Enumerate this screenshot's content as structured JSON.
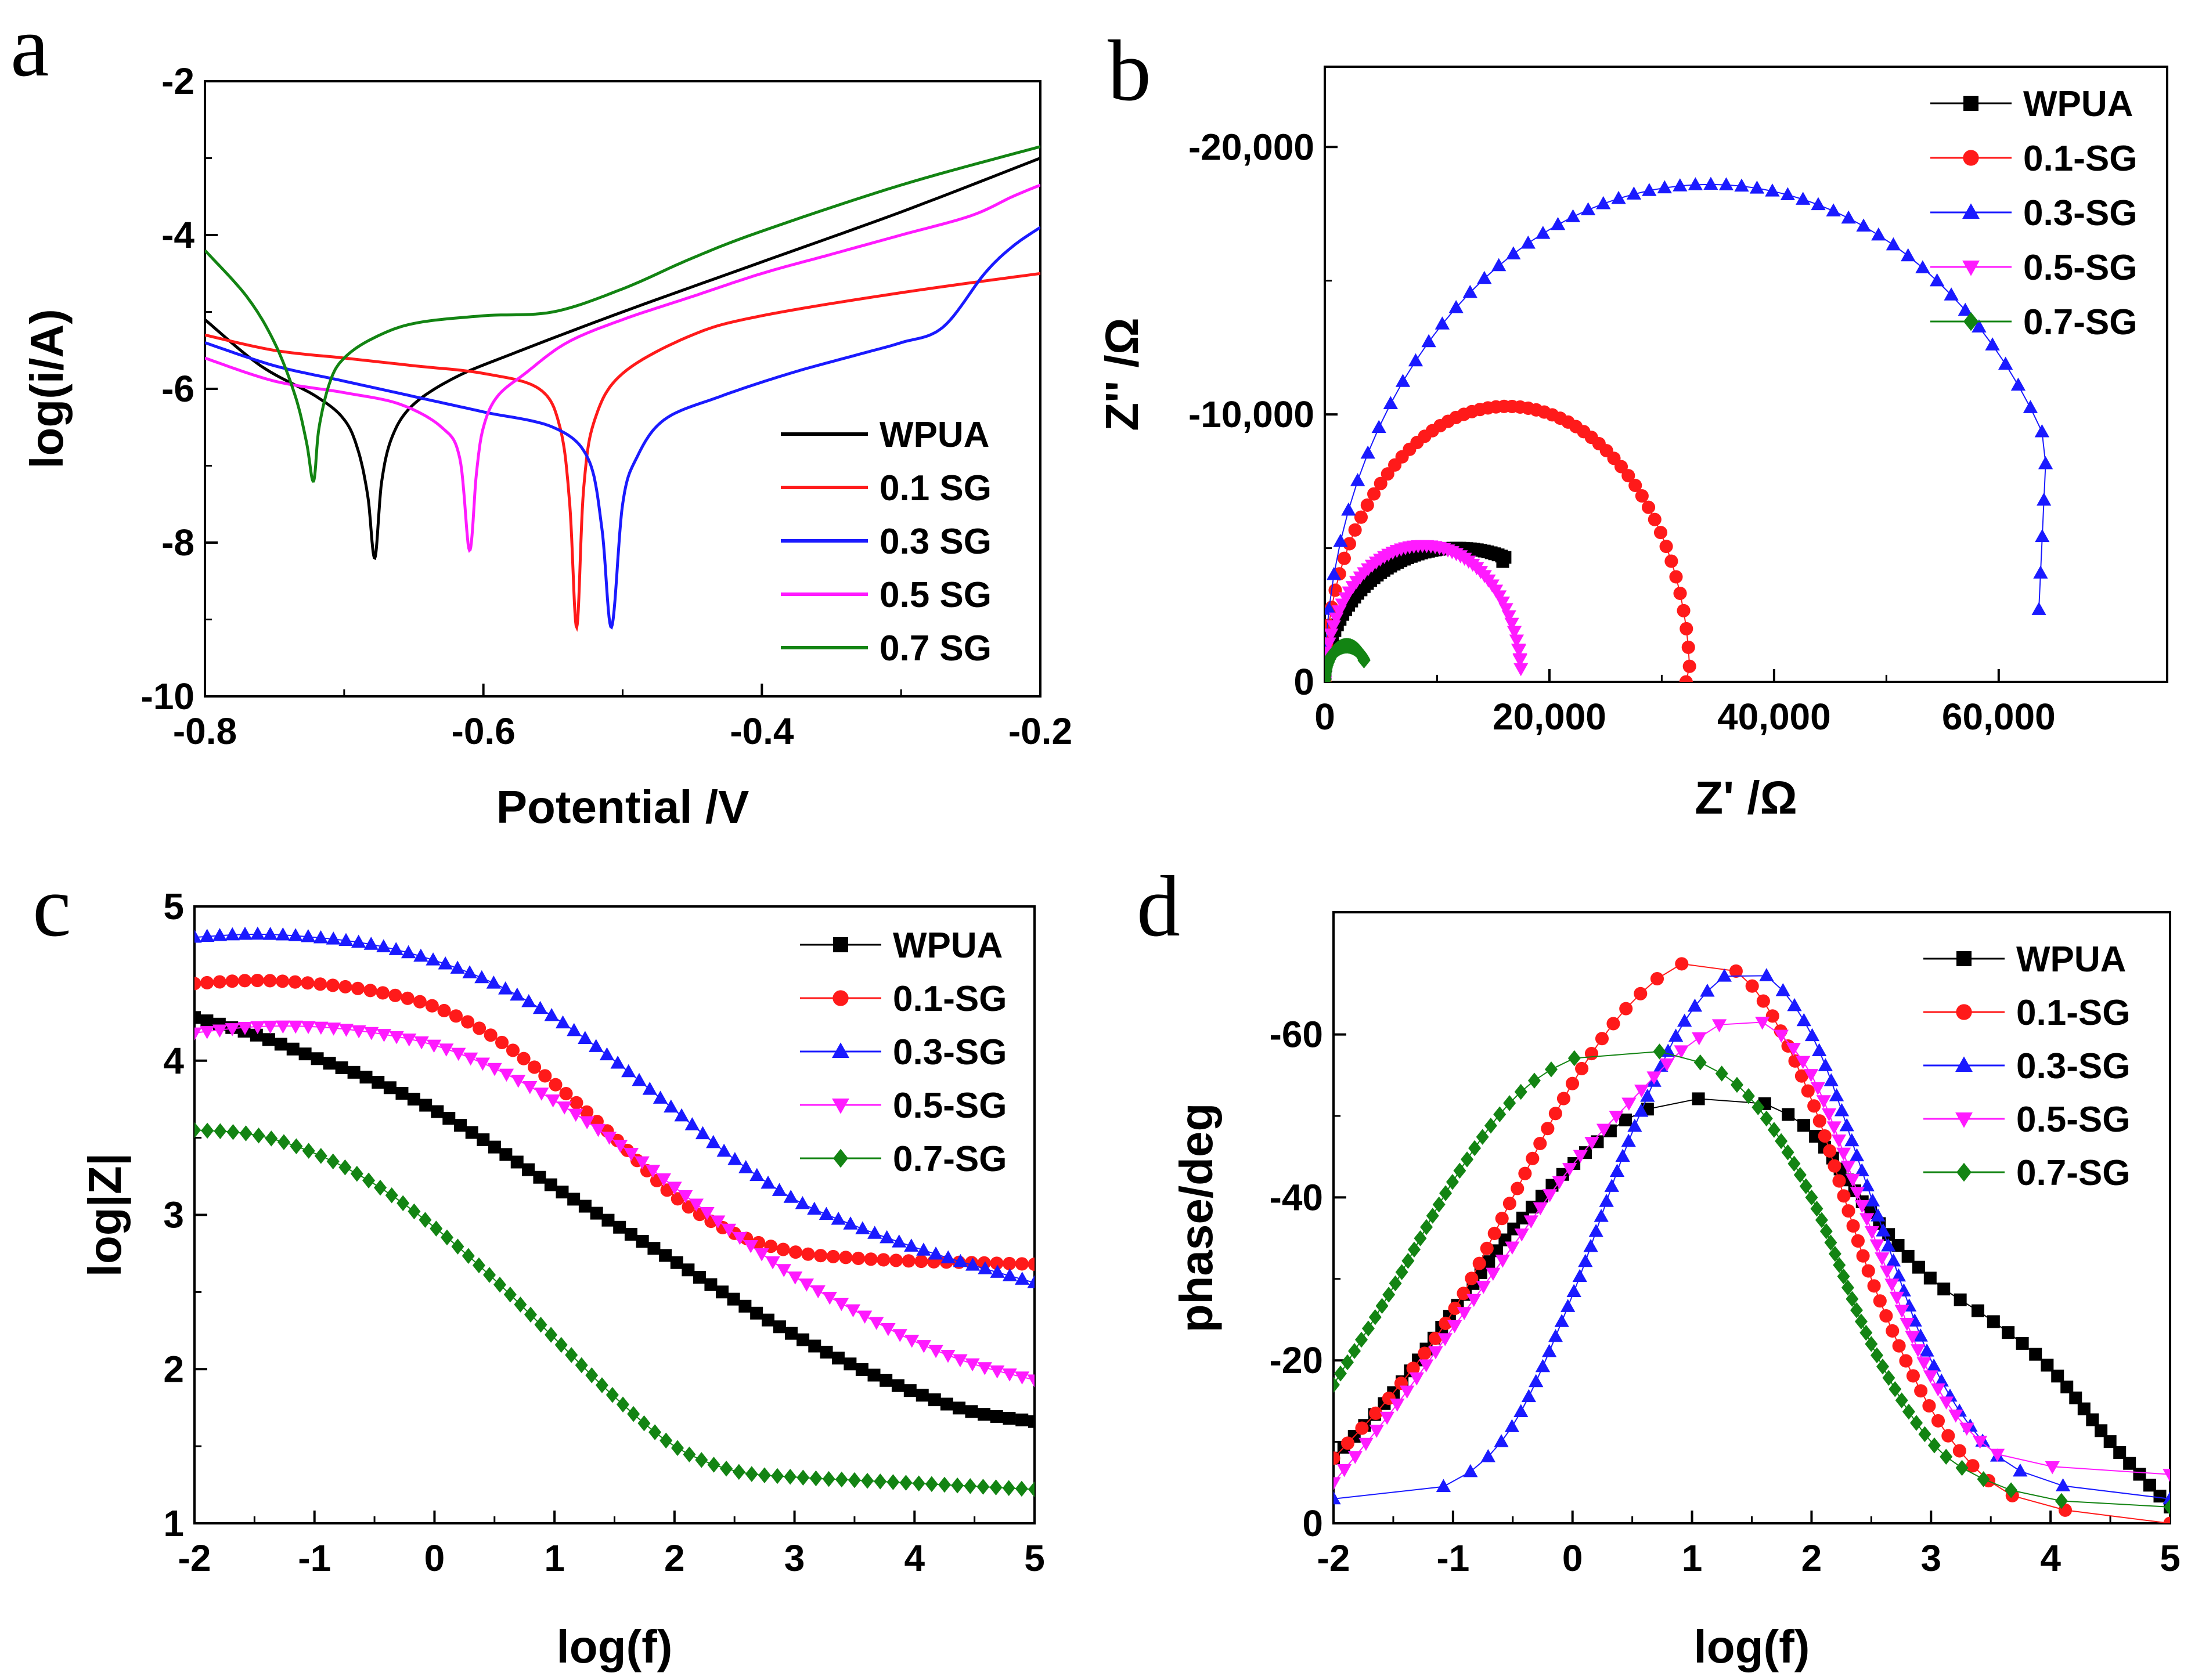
{
  "colors": {
    "black": "#000000",
    "red": "#ff1a1a",
    "blue": "#1a1aff",
    "magenta": "#ff1aff",
    "green": "#138413"
  },
  "chart_data": [
    {
      "panel": "a",
      "type": "line",
      "title": "",
      "xlabel": "Potential /V",
      "ylabel": "log(i/A)",
      "xlim": [
        -0.8,
        -0.2
      ],
      "ylim": [
        -10,
        -2
      ],
      "xticks": [
        -0.8,
        -0.6,
        -0.4,
        -0.2
      ],
      "yticks": [
        -10,
        -8,
        -6,
        -4,
        -2
      ],
      "xtick_labels": [
        "-0.8",
        "-0.6",
        "-0.4",
        "-0.2"
      ],
      "ytick_labels": [
        "-10",
        "-8",
        "-6",
        "-4",
        "-2"
      ],
      "legend_position": "bottom-right",
      "series": [
        {
          "name": "WPUA",
          "color": "#000000",
          "marker": "line",
          "x": [
            -0.8,
            -0.76,
            -0.72,
            -0.7,
            -0.69,
            -0.683,
            -0.678,
            -0.673,
            -0.665,
            -0.65,
            -0.62,
            -0.58,
            -0.5,
            -0.4,
            -0.3,
            -0.2
          ],
          "y": [
            -5.1,
            -5.7,
            -6.1,
            -6.4,
            -6.8,
            -7.4,
            -8.2,
            -7.2,
            -6.6,
            -6.2,
            -5.85,
            -5.55,
            -5.0,
            -4.35,
            -3.7,
            -3.0
          ]
        },
        {
          "name": "0.1 SG",
          "color": "#ff1a1a",
          "marker": "line",
          "x": [
            -0.8,
            -0.75,
            -0.7,
            -0.65,
            -0.6,
            -0.56,
            -0.545,
            -0.538,
            -0.533,
            -0.528,
            -0.52,
            -0.5,
            -0.45,
            -0.4,
            -0.3,
            -0.2
          ],
          "y": [
            -5.3,
            -5.5,
            -5.6,
            -5.7,
            -5.8,
            -6.0,
            -6.5,
            -7.5,
            -9.1,
            -7.3,
            -6.4,
            -5.8,
            -5.3,
            -5.05,
            -4.75,
            -4.5
          ]
        },
        {
          "name": "0.3 SG",
          "color": "#1a1aff",
          "marker": "line",
          "x": [
            -0.8,
            -0.75,
            -0.7,
            -0.65,
            -0.6,
            -0.55,
            -0.525,
            -0.515,
            -0.508,
            -0.5,
            -0.49,
            -0.47,
            -0.43,
            -0.38,
            -0.33,
            -0.3,
            -0.27,
            -0.24,
            -0.22,
            -0.2
          ],
          "y": [
            -5.4,
            -5.7,
            -5.9,
            -6.1,
            -6.3,
            -6.5,
            -6.9,
            -7.8,
            -9.1,
            -7.5,
            -6.9,
            -6.4,
            -6.1,
            -5.8,
            -5.55,
            -5.4,
            -5.2,
            -4.5,
            -4.15,
            -3.9
          ]
        },
        {
          "name": "0.5 SG",
          "color": "#ff1aff",
          "marker": "line",
          "x": [
            -0.8,
            -0.75,
            -0.7,
            -0.66,
            -0.63,
            -0.617,
            -0.61,
            -0.605,
            -0.6,
            -0.59,
            -0.57,
            -0.54,
            -0.5,
            -0.45,
            -0.4,
            -0.35,
            -0.3,
            -0.25,
            -0.22,
            -0.2
          ],
          "y": [
            -5.6,
            -5.9,
            -6.05,
            -6.2,
            -6.5,
            -6.9,
            -8.1,
            -7.1,
            -6.5,
            -6.1,
            -5.8,
            -5.4,
            -5.1,
            -4.8,
            -4.5,
            -4.25,
            -4.0,
            -3.75,
            -3.5,
            -3.35
          ]
        },
        {
          "name": "0.7 SG",
          "color": "#138413",
          "marker": "line",
          "x": [
            -0.8,
            -0.77,
            -0.75,
            -0.735,
            -0.727,
            -0.722,
            -0.718,
            -0.71,
            -0.7,
            -0.68,
            -0.65,
            -0.6,
            -0.55,
            -0.5,
            -0.45,
            -0.4,
            -0.3,
            -0.2
          ],
          "y": [
            -4.2,
            -4.8,
            -5.4,
            -6.1,
            -6.7,
            -7.2,
            -6.5,
            -5.9,
            -5.6,
            -5.35,
            -5.15,
            -5.05,
            -5.0,
            -4.7,
            -4.3,
            -3.95,
            -3.35,
            -2.85
          ]
        }
      ]
    },
    {
      "panel": "b",
      "type": "scatter",
      "title": "",
      "xlabel": "Z' /Ω",
      "ylabel": "Z'' /Ω",
      "xlim": [
        0,
        75000
      ],
      "ylim": [
        0,
        23000
      ],
      "xticks": [
        0,
        20000,
        40000,
        60000
      ],
      "yticks": [
        0,
        10000,
        20000
      ],
      "xtick_labels": [
        "0",
        "20,000",
        "40,000",
        "60,000"
      ],
      "ytick_labels": [
        "0",
        "-10,000",
        "-20,000"
      ],
      "legend_position": "top-right",
      "series": [
        {
          "name": "WPUA",
          "color": "#000000",
          "marker": "square",
          "arc": {
            "x0": 0,
            "x1": 23500,
            "yend": 4500,
            "tmax": 0.62
          }
        },
        {
          "name": "0.1-SG",
          "color": "#ff1a1a",
          "marker": "circle",
          "arc": {
            "x0": 0,
            "x1": 32500,
            "yend": 0,
            "tmax": 0.99
          }
        },
        {
          "name": "0.3-SG",
          "color": "#1a1aff",
          "marker": "triangle-up",
          "arc": {
            "x0": 0,
            "x1": 68500,
            "yend": 2700,
            "tmax": 0.84
          }
        },
        {
          "name": "0.5-SG",
          "color": "#ff1aff",
          "marker": "triangle-down",
          "arc": {
            "x0": 0,
            "x1": 17500,
            "yend": 1200,
            "tmax": 0.97
          }
        },
        {
          "name": "0.7-SG",
          "color": "#138413",
          "marker": "diamond",
          "arc": {
            "x0": 0,
            "x1": 3900,
            "yend": 800,
            "tmax": 0.8
          }
        }
      ]
    },
    {
      "panel": "c",
      "type": "scatter",
      "title": "",
      "xlabel": "log(f)",
      "ylabel": "log|Z|",
      "xlim": [
        -2,
        5
      ],
      "ylim": [
        1,
        5
      ],
      "xticks": [
        -2,
        -1,
        0,
        1,
        2,
        3,
        4,
        5
      ],
      "yticks": [
        1,
        2,
        3,
        4,
        5
      ],
      "xtick_labels": [
        "-2",
        "-1",
        "0",
        "1",
        "2",
        "3",
        "4",
        "5"
      ],
      "ytick_labels": [
        "1",
        "2",
        "3",
        "4",
        "5"
      ],
      "legend_position": "top-right",
      "series": [
        {
          "name": "WPUA",
          "color": "#000000",
          "marker": "square",
          "x": [
            -2,
            -1.5,
            -1,
            -0.5,
            0,
            0.5,
            1,
            1.5,
            2,
            2.5,
            3,
            3.5,
            4,
            4.5,
            5
          ],
          "y": [
            4.28,
            4.17,
            4.02,
            3.87,
            3.68,
            3.44,
            3.18,
            2.94,
            2.7,
            2.45,
            2.22,
            2.02,
            1.85,
            1.72,
            1.66
          ]
        },
        {
          "name": "0.1-SG",
          "color": "#ff1a1a",
          "marker": "circle",
          "x": [
            -2,
            -1.5,
            -1,
            -0.5,
            0,
            0.5,
            1,
            1.5,
            2,
            2.5,
            3,
            3.5,
            4,
            4.5,
            5
          ],
          "y": [
            4.5,
            4.52,
            4.5,
            4.45,
            4.35,
            4.15,
            3.85,
            3.5,
            3.12,
            2.88,
            2.76,
            2.72,
            2.7,
            2.69,
            2.68
          ]
        },
        {
          "name": "0.3-SG",
          "color": "#1a1aff",
          "marker": "triangle-up",
          "x": [
            -2,
            -1.5,
            -1,
            -0.5,
            0,
            0.5,
            1,
            1.5,
            2,
            2.5,
            3,
            3.5,
            4,
            4.5,
            5
          ],
          "y": [
            4.8,
            4.82,
            4.8,
            4.75,
            4.65,
            4.5,
            4.28,
            4.0,
            3.68,
            3.36,
            3.1,
            2.93,
            2.79,
            2.67,
            2.56
          ]
        },
        {
          "name": "0.5-SG",
          "color": "#ff1aff",
          "marker": "triangle-down",
          "x": [
            -2,
            -1.5,
            -1,
            -0.5,
            0,
            0.5,
            1,
            1.5,
            2,
            2.5,
            3,
            3.5,
            4,
            4.5,
            5
          ],
          "y": [
            4.18,
            4.22,
            4.22,
            4.18,
            4.1,
            3.95,
            3.74,
            3.48,
            3.18,
            2.88,
            2.6,
            2.38,
            2.18,
            2.03,
            1.93
          ]
        },
        {
          "name": "0.7-SG",
          "color": "#138413",
          "marker": "diamond",
          "x": [
            -2,
            -1.5,
            -1,
            -0.5,
            0,
            0.5,
            1,
            1.5,
            2,
            2.5,
            3,
            3.5,
            4,
            4.5,
            5
          ],
          "y": [
            3.55,
            3.52,
            3.4,
            3.2,
            2.92,
            2.58,
            2.2,
            1.82,
            1.5,
            1.34,
            1.3,
            1.28,
            1.26,
            1.24,
            1.22
          ]
        }
      ]
    },
    {
      "panel": "d",
      "type": "scatter",
      "title": "",
      "xlabel": "log(f)",
      "ylabel": "phase/deg",
      "xlim": [
        -2,
        5
      ],
      "ylim": [
        0,
        75
      ],
      "xticks": [
        -2,
        -1,
        0,
        1,
        2,
        3,
        4,
        5
      ],
      "yticks": [
        0,
        20,
        40,
        60
      ],
      "xtick_labels": [
        "-2",
        "-1",
        "0",
        "1",
        "2",
        "3",
        "4",
        "5"
      ],
      "ytick_labels": [
        "0",
        "-20",
        "-40",
        "-60"
      ],
      "legend_position": "top-right",
      "series": [
        {
          "name": "WPUA",
          "color": "#000000",
          "marker": "square",
          "x": [
            -2,
            -1.5,
            -1,
            -0.5,
            0,
            0.5,
            1,
            1.5,
            2,
            2.5,
            3,
            3.5,
            4,
            4.5,
            5
          ],
          "y": [
            8,
            16,
            26,
            36,
            44,
            50,
            52,
            52,
            48,
            38,
            30,
            25,
            19,
            10,
            2
          ]
        },
        {
          "name": "0.1-SG",
          "color": "#ff1a1a",
          "marker": "circle",
          "x": [
            -2,
            -1.5,
            -1,
            -0.5,
            0,
            0.5,
            1,
            1.5,
            2,
            2.5,
            3,
            3.5,
            4,
            4.5,
            5
          ],
          "y": [
            8,
            16,
            26,
            40,
            54,
            64,
            69,
            66,
            52,
            30,
            14,
            5,
            2,
            1,
            0
          ]
        },
        {
          "name": "0.3-SG",
          "color": "#1a1aff",
          "marker": "triangle-up",
          "x": [
            -2,
            -1.5,
            -1,
            -0.5,
            0,
            0.5,
            1,
            1.5,
            2,
            2.5,
            3,
            3.5,
            4,
            4.5,
            5
          ],
          "y": [
            3,
            4,
            5,
            12,
            28,
            48,
            63,
            68,
            60,
            40,
            20,
            9,
            5,
            4,
            3
          ]
        },
        {
          "name": "0.5-SG",
          "color": "#ff1aff",
          "marker": "triangle-down",
          "x": [
            -2,
            -1.5,
            -1,
            -0.5,
            0,
            0.5,
            1,
            1.5,
            2,
            2.5,
            3,
            3.5,
            4,
            4.5,
            5
          ],
          "y": [
            5,
            14,
            24,
            34,
            44,
            52,
            59,
            62,
            55,
            36,
            18,
            9,
            7,
            6,
            6
          ]
        },
        {
          "name": "0.7-SG",
          "color": "#138413",
          "marker": "diamond",
          "x": [
            -2,
            -1.5,
            -1,
            -0.5,
            0,
            0.5,
            1,
            1.5,
            2,
            2.5,
            3,
            3.5,
            4,
            4.5,
            5
          ],
          "y": [
            17,
            29,
            42,
            52,
            57,
            58,
            57,
            52,
            40,
            22,
            10,
            5,
            3,
            2,
            2
          ]
        }
      ]
    }
  ],
  "panel_labels": {
    "a": "a",
    "b": "b",
    "c": "c",
    "d": "d"
  }
}
